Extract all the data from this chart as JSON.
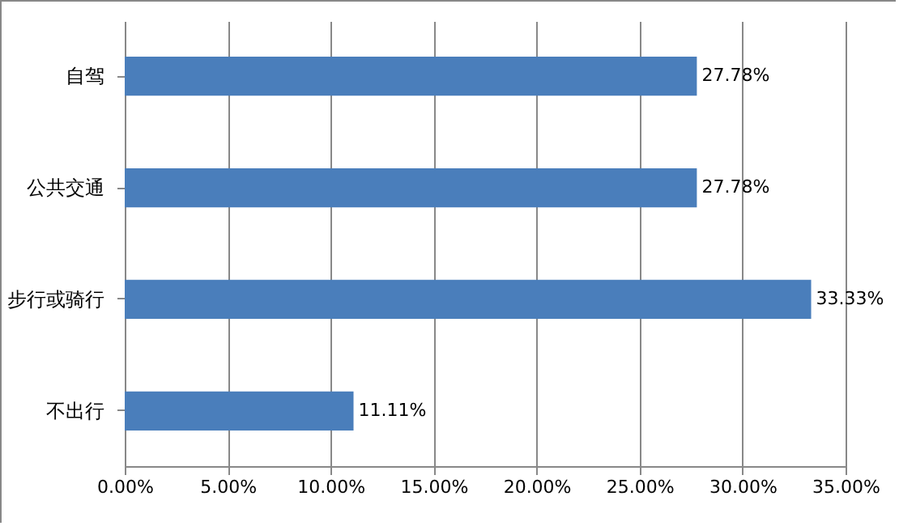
{
  "chart_data": {
    "type": "bar",
    "orientation": "horizontal",
    "categories": [
      "自驾",
      "公共交通",
      "步行或骑行",
      "不出行"
    ],
    "values": [
      27.78,
      27.78,
      33.33,
      11.11
    ],
    "value_labels": [
      "27.78%",
      "27.78%",
      "33.33%",
      "11.11%"
    ],
    "color": "#4a7ebb",
    "xlim": [
      0,
      35
    ],
    "xticks": [
      {
        "value": 0,
        "label": "0.00%"
      },
      {
        "value": 5,
        "label": "5.00%"
      },
      {
        "value": 10,
        "label": "10.00%"
      },
      {
        "value": 15,
        "label": "15.00%"
      },
      {
        "value": 20,
        "label": "20.00%"
      },
      {
        "value": 25,
        "label": "25.00%"
      },
      {
        "value": 30,
        "label": "30.00%"
      },
      {
        "value": 35,
        "label": "35.00%"
      }
    ],
    "grid": "x"
  }
}
